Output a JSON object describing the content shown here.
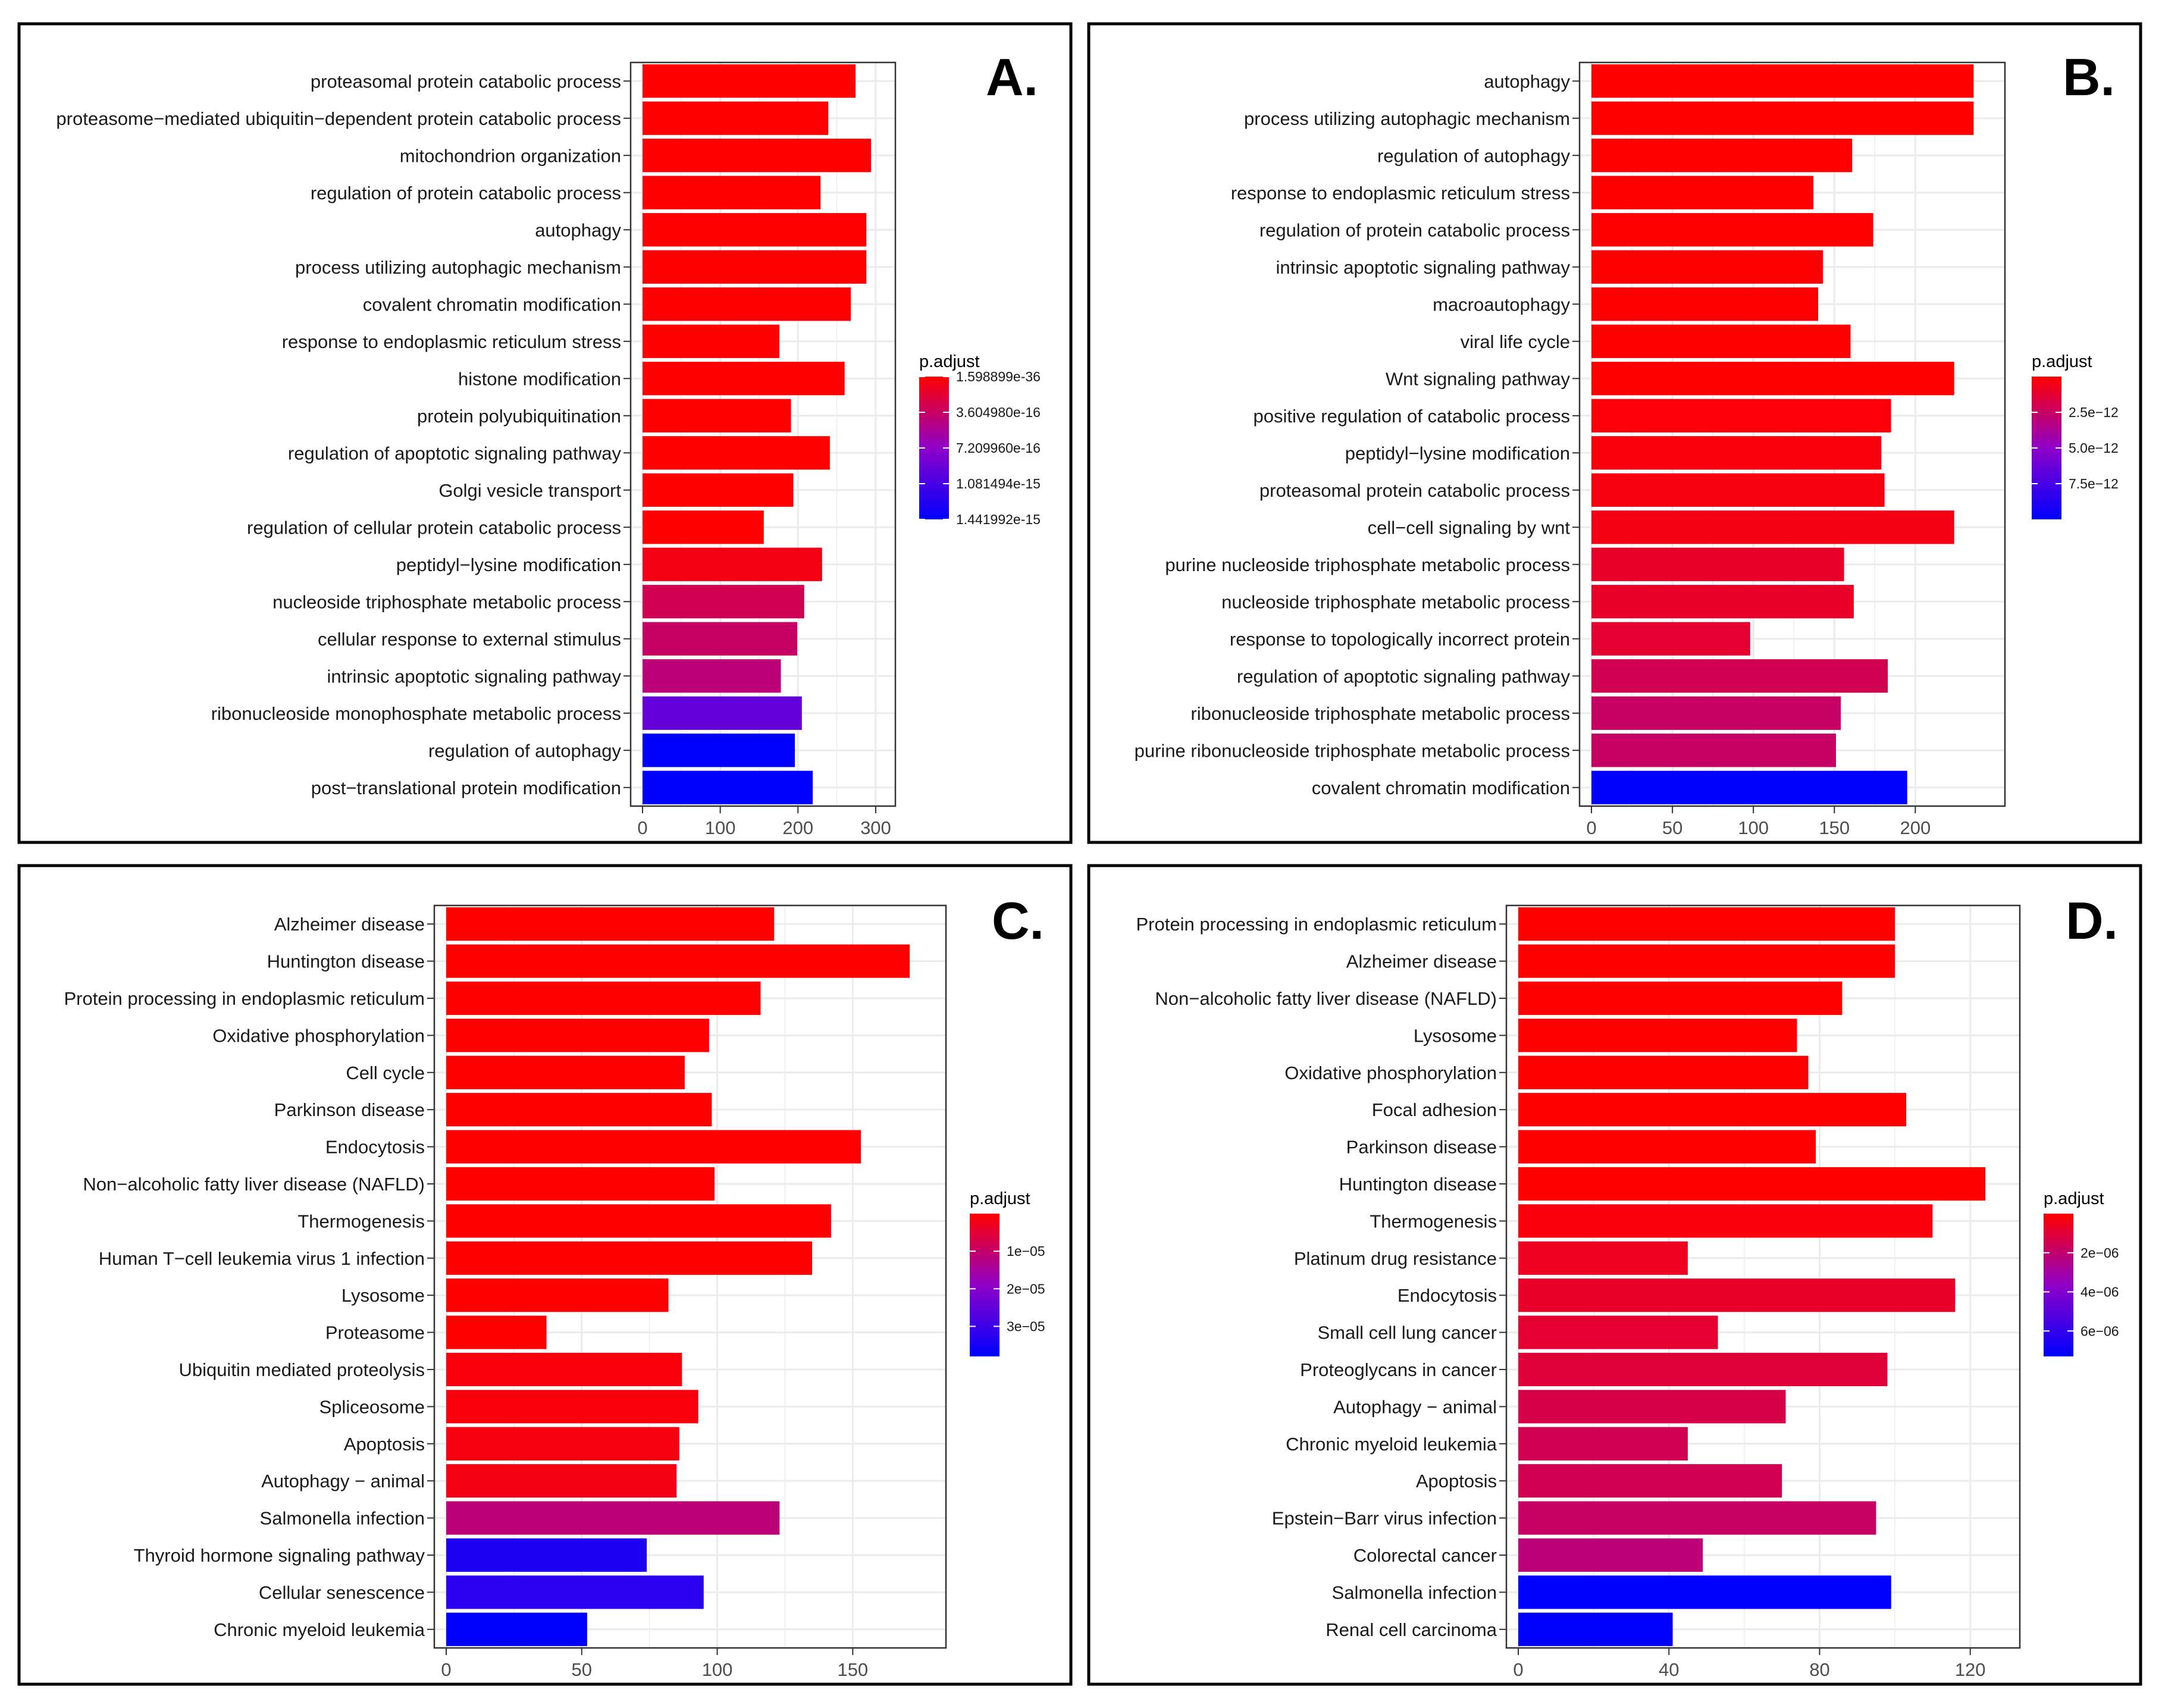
{
  "figure": {
    "description_free": true
  },
  "colors": {
    "high": "#ff0000",
    "mid": "#8f00c8",
    "low": "#0000ff",
    "frame": "#000000",
    "panel_border": "#333333",
    "grid": "#ebebeb",
    "axis_text": "#333333"
  },
  "chart_data": [
    {
      "panel_label": "A.",
      "type": "bar",
      "orientation": "horizontal",
      "xlim": [
        0,
        310
      ],
      "xticks": [
        0,
        100,
        200,
        300
      ],
      "legend": {
        "title": "p.adjust",
        "labels": [
          "1.598899e-36",
          "3.604980e-16",
          "7.209960e-16",
          "1.081494e-15",
          "1.441992e-15"
        ],
        "range": [
          0,
          1.441992e-15
        ],
        "label_values": [
          0,
          3.60498e-16,
          7.20996e-16,
          1.081494e-15,
          1.441992e-15
        ],
        "position": "right"
      },
      "categories": [
        "proteasomal protein catabolic process",
        "proteasome−mediated ubiquitin−dependent protein catabolic process",
        "mitochondrion organization",
        "regulation of protein catabolic process",
        "autophagy",
        "process utilizing autophagic mechanism",
        "covalent chromatin modification",
        "response to endoplasmic reticulum stress",
        "histone modification",
        "protein polyubiquitination",
        "regulation of apoptotic signaling pathway",
        "Golgi vesicle transport",
        "regulation of cellular protein catabolic process",
        "peptidyl−lysine modification",
        "nucleoside triphosphate metabolic process",
        "cellular response to external stimulus",
        "intrinsic apoptotic signaling pathway",
        "ribonucleoside monophosphate metabolic process",
        "regulation of autophagy",
        "post−translational protein modification"
      ],
      "values": [
        274,
        239,
        294,
        229,
        288,
        288,
        268,
        176,
        260,
        191,
        241,
        194,
        156,
        231,
        208,
        199,
        178,
        205,
        196,
        219
      ],
      "color_level": [
        0,
        0,
        0,
        0,
        0,
        0,
        0,
        0,
        0,
        0,
        0,
        0,
        0,
        0.05,
        0.2,
        0.25,
        0.3,
        0.65,
        1.0,
        1.0
      ]
    },
    {
      "panel_label": "B.",
      "type": "bar",
      "orientation": "horizontal",
      "xlim": [
        0,
        248
      ],
      "xticks": [
        0,
        50,
        100,
        150,
        200
      ],
      "legend": {
        "title": "p.adjust",
        "labels": [
          "2.5e−12",
          "5.0e−12",
          "7.5e−12"
        ],
        "range": [
          0,
          1e-11
        ],
        "label_values": [
          2.5e-12,
          5e-12,
          7.5e-12
        ],
        "position": "right"
      },
      "categories": [
        "autophagy",
        "process utilizing autophagic mechanism",
        "regulation of autophagy",
        "response to endoplasmic reticulum stress",
        "regulation of protein catabolic process",
        "intrinsic apoptotic signaling pathway",
        "macroautophagy",
        "viral life cycle",
        "Wnt signaling pathway",
        "positive regulation of catabolic process",
        "peptidyl−lysine modification",
        "proteasomal protein catabolic process",
        "cell−cell signaling by wnt",
        "purine nucleoside triphosphate metabolic process",
        "nucleoside triphosphate metabolic process",
        "response to topologically incorrect protein",
        "regulation of apoptotic signaling pathway",
        "ribonucleoside triphosphate metabolic process",
        "purine ribonucleoside triphosphate metabolic process",
        "covalent chromatin modification"
      ],
      "values": [
        236,
        236,
        161,
        137,
        174,
        143,
        140,
        160,
        224,
        185,
        179,
        181,
        224,
        156,
        162,
        98,
        183,
        154,
        151,
        195
      ],
      "color_level": [
        0,
        0,
        0,
        0,
        0,
        0,
        0,
        0,
        0,
        0.02,
        0.03,
        0.04,
        0.05,
        0.1,
        0.1,
        0.12,
        0.2,
        0.25,
        0.25,
        1.0
      ]
    },
    {
      "panel_label": "C.",
      "type": "bar",
      "orientation": "horizontal",
      "xlim": [
        0,
        180
      ],
      "xticks": [
        0,
        50,
        100,
        150
      ],
      "legend": {
        "title": "p.adjust",
        "labels": [
          "1e−05",
          "2e−05",
          "3e−05"
        ],
        "range": [
          0,
          3.8e-05
        ],
        "label_values": [
          1e-05,
          2e-05,
          3e-05
        ],
        "position": "right"
      },
      "categories": [
        "Alzheimer disease",
        "Huntington disease",
        "Protein processing in endoplasmic reticulum",
        "Oxidative phosphorylation",
        "Cell cycle",
        "Parkinson disease",
        "Endocytosis",
        "Non−alcoholic fatty liver disease (NAFLD)",
        "Thermogenesis",
        "Human T−cell leukemia virus 1 infection",
        "Lysosome",
        "Proteasome",
        "Ubiquitin mediated proteolysis",
        "Spliceosome",
        "Apoptosis",
        "Autophagy − animal",
        "Salmonella infection",
        "Thyroid hormone signaling pathway",
        "Cellular senescence",
        "Chronic myeloid leukemia"
      ],
      "values": [
        121,
        171,
        116,
        97,
        88,
        98,
        153,
        99,
        142,
        135,
        82,
        37,
        87,
        93,
        86,
        85,
        123,
        74,
        95,
        52
      ],
      "color_level": [
        0,
        0,
        0,
        0,
        0,
        0,
        0,
        0,
        0,
        0,
        0,
        0,
        0.03,
        0.03,
        0.04,
        0.05,
        0.3,
        0.9,
        0.85,
        1.0
      ]
    },
    {
      "panel_label": "D.",
      "type": "bar",
      "orientation": "horizontal",
      "xlim": [
        0,
        130
      ],
      "xticks": [
        0,
        40,
        80,
        120
      ],
      "legend": {
        "title": "p.adjust",
        "labels": [
          "2e−06",
          "4e−06",
          "6e−06"
        ],
        "range": [
          0,
          7.3e-06
        ],
        "label_values": [
          2e-06,
          4e-06,
          6e-06
        ],
        "position": "right"
      },
      "categories": [
        "Protein processing in endoplasmic reticulum",
        "Alzheimer disease",
        "Non−alcoholic fatty liver disease (NAFLD)",
        "Lysosome",
        "Oxidative phosphorylation",
        "Focal adhesion",
        "Parkinson disease",
        "Huntington disease",
        "Thermogenesis",
        "Platinum drug resistance",
        "Endocytosis",
        "Small cell lung cancer",
        "Proteoglycans in cancer",
        "Autophagy − animal",
        "Chronic myeloid leukemia",
        "Apoptosis",
        "Epstein−Barr virus infection",
        "Colorectal cancer",
        "Salmonella infection",
        "Renal cell carcinoma"
      ],
      "values": [
        100,
        100,
        86,
        74,
        77,
        103,
        79,
        124,
        110,
        45,
        116,
        53,
        98,
        71,
        45,
        70,
        95,
        49,
        99,
        41
      ],
      "color_level": [
        0,
        0,
        0,
        0,
        0,
        0,
        0,
        0,
        0.03,
        0.08,
        0.1,
        0.12,
        0.14,
        0.18,
        0.2,
        0.2,
        0.25,
        0.3,
        1.0,
        1.0
      ]
    }
  ]
}
